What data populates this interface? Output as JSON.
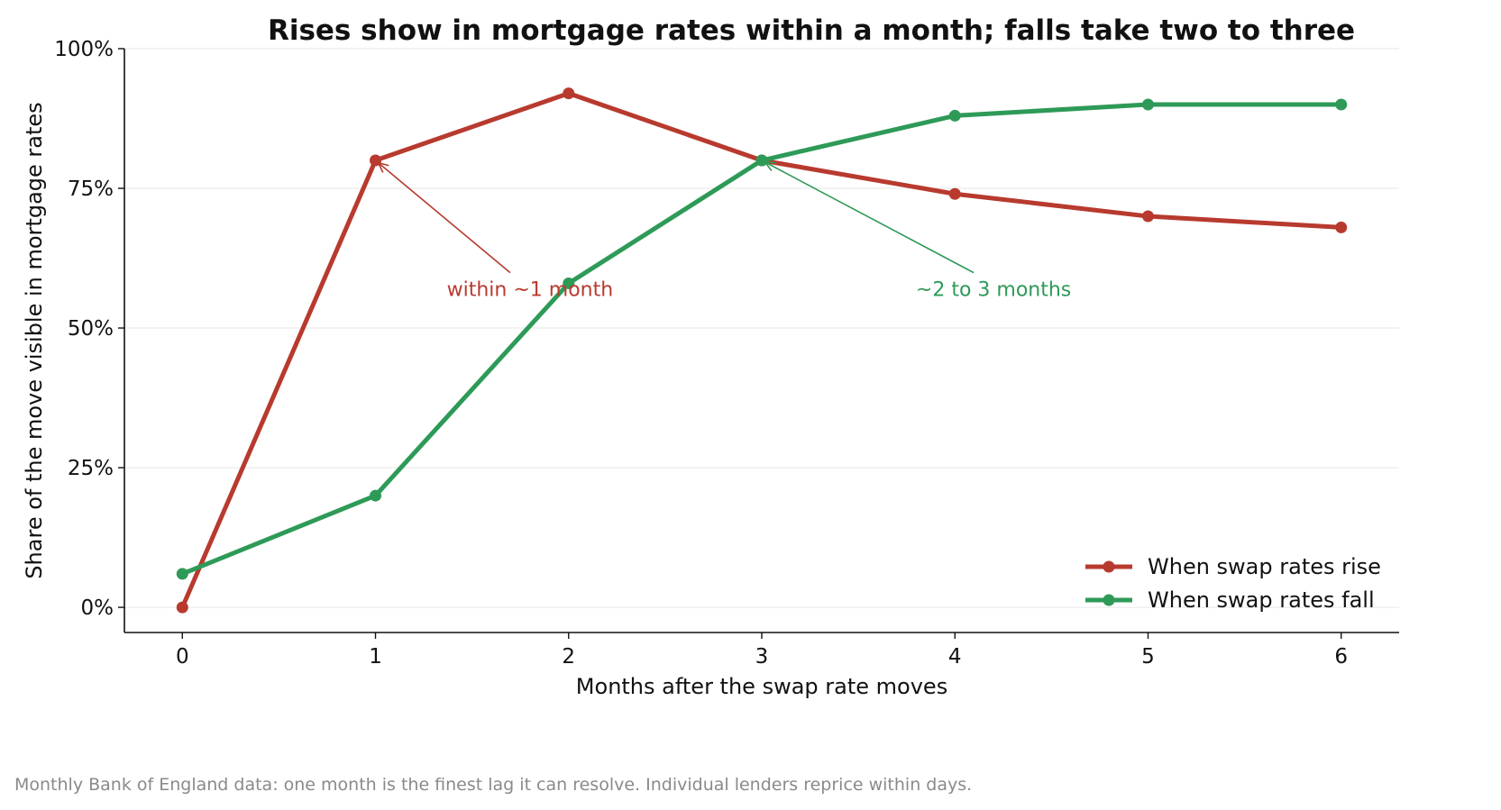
{
  "footnote": "Monthly Bank of England data: one month is the finest lag it can resolve. Individual lenders reprice within days.",
  "chart_data": {
    "type": "line",
    "title": "Rises show in mortgage rates within a month; falls take two to three",
    "xlabel": "Months after the swap rate moves",
    "ylabel": "Share of the move visible in mortgage rates",
    "x": [
      0,
      1,
      2,
      3,
      4,
      5,
      6
    ],
    "x_ticks": [
      "0",
      "1",
      "2",
      "3",
      "4",
      "5",
      "6"
    ],
    "xlim": [
      -0.3,
      6.3
    ],
    "ylim": [
      -0.045,
      1.0
    ],
    "y_ticks": [
      0,
      0.25,
      0.5,
      0.75,
      1.0
    ],
    "y_tick_labels": [
      "0%",
      "25%",
      "50%",
      "75%",
      "100%"
    ],
    "grid": "horizontal",
    "legend_position": "bottom-right",
    "series": [
      {
        "name": "When swap rates rise",
        "color": "#b83a2e",
        "values": [
          0.0,
          0.8,
          0.92,
          0.8,
          0.74,
          0.7,
          0.68
        ]
      },
      {
        "name": "When swap rates fall",
        "color": "#2e9a58",
        "values": [
          0.06,
          0.2,
          0.58,
          0.8,
          0.88,
          0.9,
          0.9
        ]
      }
    ],
    "annotations": [
      {
        "text": "within ~1 month",
        "color": "#b83a2e",
        "point": [
          1,
          0.8
        ],
        "text_at": [
          1.8,
          0.57
        ]
      },
      {
        "text": "~2 to 3 months",
        "color": "#2e9a58",
        "point": [
          3,
          0.8
        ],
        "text_at": [
          4.2,
          0.57
        ]
      }
    ]
  }
}
